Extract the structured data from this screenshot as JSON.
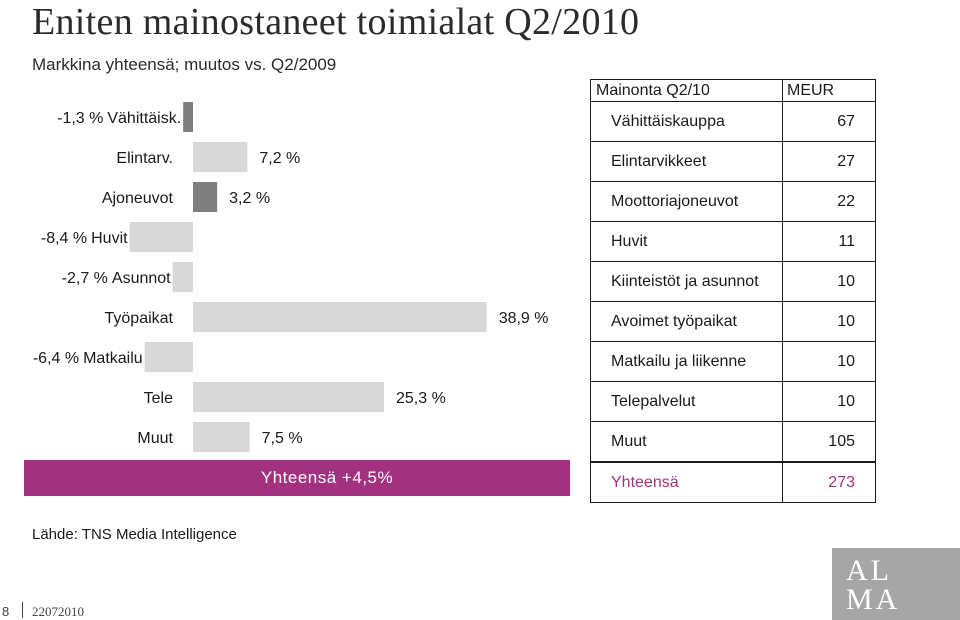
{
  "title": "Eniten mainostaneet toimialat Q2/2010",
  "subtitle": "Markkina yhteensä; muutos vs. Q2/2009",
  "chart_data": {
    "type": "bar",
    "orientation": "horizontal",
    "categories": [
      "Vähittäisk.",
      "Elintarv.",
      "Ajoneuvot",
      "Huvit",
      "Asunnot",
      "Työpaikat",
      "Matkailu",
      "Tele",
      "Muut"
    ],
    "values": [
      -1.3,
      7.2,
      3.2,
      -8.4,
      -2.7,
      38.9,
      -6.4,
      25.3,
      7.5
    ],
    "value_labels": [
      "-1,3 %",
      "7,2 %",
      "3,2 %",
      "-8,4 %",
      "-2,7 %",
      "38,9 %",
      "-6,4 %",
      "25,3 %",
      "7,5 %"
    ],
    "colors": [
      "#7f7f7f",
      "#d8d8d8",
      "#7f7f7f",
      "#d8d8d8",
      "#d8d8d8",
      "#d8d8d8",
      "#d8d8d8",
      "#d8d8d8",
      "#d8d8d8"
    ],
    "total_label": "Yhteensä +4,5%"
  },
  "table": {
    "header": [
      "Mainonta Q2/10",
      "MEUR"
    ],
    "rows": [
      [
        "Vähittäiskauppa",
        "67"
      ],
      [
        "Elintarvikkeet",
        "27"
      ],
      [
        "Moottoriajoneuvot",
        "22"
      ],
      [
        "Huvit",
        "11"
      ],
      [
        "Kiinteistöt ja asunnot",
        "10"
      ],
      [
        "Avoimet työpaikat",
        "10"
      ],
      [
        "Matkailu ja liikenne",
        "10"
      ],
      [
        "Telepalvelut",
        "10"
      ],
      [
        "Muut",
        "105"
      ]
    ],
    "total": [
      "Yhteensä",
      "273"
    ]
  },
  "source": "Lähde: TNS Media Intelligence",
  "footer": {
    "page": "8",
    "date": "22072010"
  },
  "logo": {
    "line1": "AL",
    "line2": "MA"
  },
  "colors": {
    "accent": "#a2317f",
    "bar_light": "#d8d8d8",
    "bar_dark": "#7f7f7f",
    "logo_bg": "#a6a6a6"
  }
}
